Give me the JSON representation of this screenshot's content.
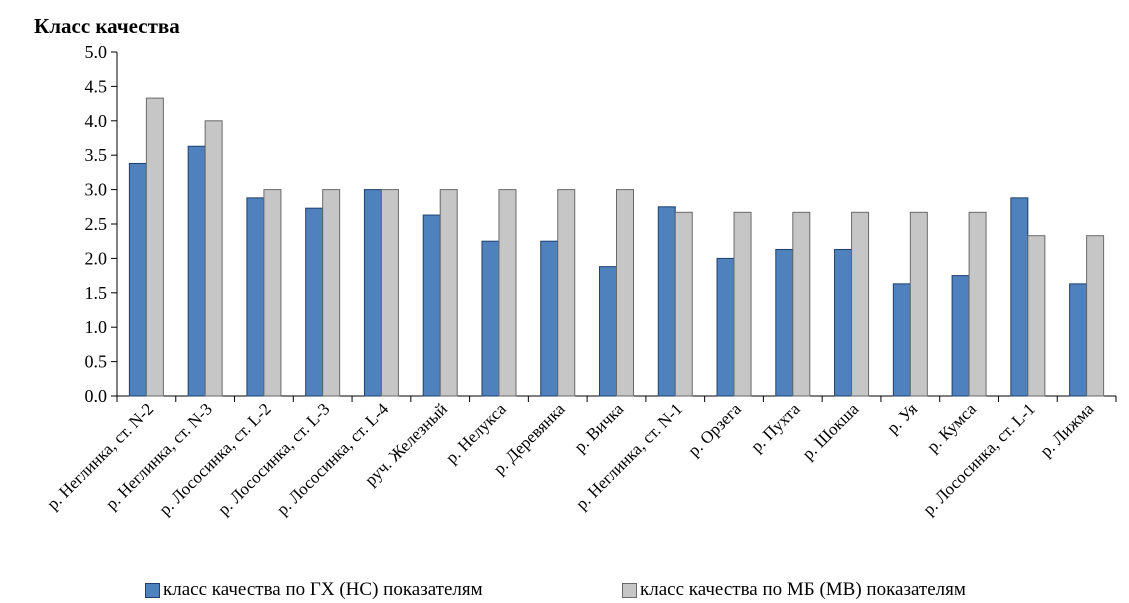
{
  "chart_data": {
    "type": "bar",
    "ylabel": "Класс качества",
    "ylim": [
      0,
      5
    ],
    "yticks": [
      "0.0",
      "0.5",
      "1.0",
      "1.5",
      "2.0",
      "2.5",
      "3.0",
      "3.5",
      "4.0",
      "4.5",
      "5.0"
    ],
    "grid": false,
    "legend_position": "bottom",
    "categories": [
      "р. Неглинка, ст. N-2",
      "р. Неглинка, ст. N-3",
      "р. Лососинка, ст. L-2",
      "р. Лососинка, ст. L-3",
      "р. Лососинка, ст. L-4",
      "руч. Железный",
      "р. Нелукса",
      "р. Деревянка",
      "р. Вичка",
      "р. Неглинка, ст. N-1",
      "р. Орзега",
      "р. Пухта",
      "р. Шокша",
      "р. Уя",
      "р. Кумса",
      "р. Лососинка, ст. L-1",
      "р. Лижма"
    ],
    "series": [
      {
        "name": "класс качества по ГХ (НС) показателям",
        "color": "#4f81bd",
        "values": [
          3.38,
          3.63,
          2.88,
          2.73,
          3.0,
          2.63,
          2.25,
          2.25,
          1.88,
          2.75,
          2.0,
          2.13,
          2.13,
          1.63,
          1.75,
          2.88,
          1.63
        ]
      },
      {
        "name": "класс качества по МБ (МВ) показателям",
        "color": "#c6c6c6",
        "values": [
          4.33,
          4.0,
          3.0,
          3.0,
          3.0,
          3.0,
          3.0,
          3.0,
          3.0,
          2.67,
          2.67,
          2.67,
          2.67,
          2.67,
          2.67,
          2.33,
          2.33
        ]
      }
    ]
  }
}
